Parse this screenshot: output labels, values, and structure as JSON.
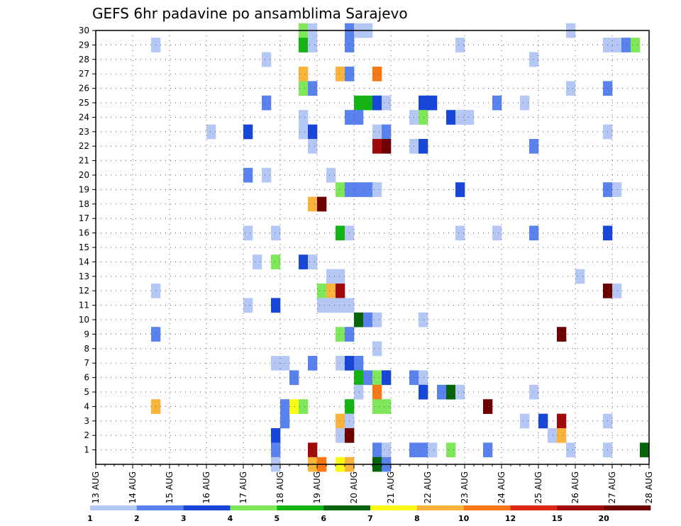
{
  "chart_data": {
    "type": "heatmap",
    "title": "GEFS 6hr padavine po ansamblima Sarajevo",
    "x_tick_labels": [
      "13 AUG",
      "14 AUG",
      "15 AUG",
      "16 AUG",
      "17 AUG",
      "18 AUG",
      "19 AUG",
      "20 AUG",
      "21 AUG",
      "22 AUG",
      "23 AUG",
      "24 AUG",
      "25 AUG",
      "26 AUG",
      "27 AUG",
      "28 AUG"
    ],
    "y_tick_labels": [
      "1",
      "2",
      "3",
      "4",
      "5",
      "6",
      "7",
      "8",
      "9",
      "10",
      "11",
      "12",
      "13",
      "14",
      "15",
      "16",
      "17",
      "18",
      "19",
      "20",
      "21",
      "22",
      "23",
      "24",
      "25",
      "26",
      "27",
      "28",
      "29",
      "30"
    ],
    "x_range": [
      "13 AUG 00Z",
      "28 AUG 00Z"
    ],
    "y_range": [
      0,
      30
    ],
    "time_step_hours": 6,
    "grid": "dotted",
    "legend": {
      "position": "bottom",
      "tick_labels": [
        "1",
        "2",
        "3",
        "4",
        "5",
        "6",
        "7",
        "8",
        "10",
        "12",
        "15",
        "20"
      ],
      "colors": [
        "#b4c7f5",
        "#5a82ee",
        "#1846d8",
        "#7ee85a",
        "#14b414",
        "#06640a",
        "#fafa14",
        "#fab43c",
        "#fa7814",
        "#dc2814",
        "#a00a0a",
        "#6e0000"
      ]
    },
    "points": [
      [
        "14 AUG 12Z",
        29,
        1
      ],
      [
        "18 AUG 12Z",
        30,
        4
      ],
      [
        "18 AUG 18Z",
        30,
        1
      ],
      [
        "19 AUG 18Z",
        30,
        2
      ],
      [
        "20 AUG 00Z",
        30,
        1
      ],
      [
        "20 AUG 06Z",
        30,
        1
      ],
      [
        "25 AUG 18Z",
        30,
        1
      ],
      [
        "18 AUG 12Z",
        29,
        5
      ],
      [
        "18 AUG 18Z",
        29,
        1
      ],
      [
        "19 AUG 18Z",
        29,
        2
      ],
      [
        "22 AUG 18Z",
        29,
        1
      ],
      [
        "26 AUG 18Z",
        29,
        1
      ],
      [
        "27 AUG 00Z",
        29,
        1
      ],
      [
        "27 AUG 06Z",
        29,
        2
      ],
      [
        "27 AUG 12Z",
        29,
        4
      ],
      [
        "17 AUG 12Z",
        28,
        1
      ],
      [
        "24 AUG 18Z",
        28,
        1
      ],
      [
        "18 AUG 12Z",
        27,
        8
      ],
      [
        "19 AUG 12Z",
        27,
        8
      ],
      [
        "19 AUG 18Z",
        27,
        2
      ],
      [
        "20 AUG 12Z",
        27,
        10
      ],
      [
        "18 AUG 12Z",
        26,
        4
      ],
      [
        "18 AUG 18Z",
        26,
        2
      ],
      [
        "25 AUG 18Z",
        26,
        1
      ],
      [
        "26 AUG 18Z",
        26,
        2
      ],
      [
        "17 AUG 12Z",
        25,
        2
      ],
      [
        "20 AUG 00Z",
        25,
        5
      ],
      [
        "20 AUG 06Z",
        25,
        5
      ],
      [
        "20 AUG 12Z",
        25,
        3
      ],
      [
        "20 AUG 18Z",
        25,
        1
      ],
      [
        "21 AUG 18Z",
        25,
        3
      ],
      [
        "22 AUG 00Z",
        25,
        3
      ],
      [
        "23 AUG 18Z",
        25,
        2
      ],
      [
        "24 AUG 12Z",
        25,
        1
      ],
      [
        "18 AUG 12Z",
        24,
        1
      ],
      [
        "19 AUG 18Z",
        24,
        2
      ],
      [
        "20 AUG 00Z",
        24,
        2
      ],
      [
        "21 AUG 12Z",
        24,
        1
      ],
      [
        "21 AUG 18Z",
        24,
        4
      ],
      [
        "22 AUG 12Z",
        24,
        3
      ],
      [
        "22 AUG 18Z",
        24,
        1
      ],
      [
        "23 AUG 00Z",
        24,
        1
      ],
      [
        "16 AUG 00Z",
        23,
        1
      ],
      [
        "17 AUG 00Z",
        23,
        3
      ],
      [
        "18 AUG 12Z",
        23,
        1
      ],
      [
        "18 AUG 18Z",
        23,
        3
      ],
      [
        "20 AUG 12Z",
        23,
        1
      ],
      [
        "20 AUG 18Z",
        23,
        2
      ],
      [
        "26 AUG 18Z",
        23,
        1
      ],
      [
        "18 AUG 18Z",
        22,
        1
      ],
      [
        "20 AUG 12Z",
        22,
        15
      ],
      [
        "20 AUG 18Z",
        22,
        20
      ],
      [
        "21 AUG 12Z",
        22,
        1
      ],
      [
        "21 AUG 18Z",
        22,
        3
      ],
      [
        "24 AUG 18Z",
        22,
        2
      ],
      [
        "17 AUG 00Z",
        20,
        2
      ],
      [
        "17 AUG 12Z",
        20,
        1
      ],
      [
        "19 AUG 06Z",
        20,
        1
      ],
      [
        "19 AUG 12Z",
        19,
        4
      ],
      [
        "19 AUG 18Z",
        19,
        2
      ],
      [
        "20 AUG 00Z",
        19,
        2
      ],
      [
        "20 AUG 06Z",
        19,
        2
      ],
      [
        "20 AUG 12Z",
        19,
        1
      ],
      [
        "22 AUG 18Z",
        19,
        3
      ],
      [
        "26 AUG 18Z",
        19,
        2
      ],
      [
        "27 AUG 00Z",
        19,
        1
      ],
      [
        "18 AUG 18Z",
        18,
        8
      ],
      [
        "19 AUG 00Z",
        18,
        20
      ],
      [
        "17 AUG 00Z",
        16,
        1
      ],
      [
        "17 AUG 18Z",
        16,
        1
      ],
      [
        "19 AUG 12Z",
        16,
        5
      ],
      [
        "19 AUG 18Z",
        16,
        1
      ],
      [
        "22 AUG 18Z",
        16,
        1
      ],
      [
        "23 AUG 18Z",
        16,
        1
      ],
      [
        "24 AUG 18Z",
        16,
        2
      ],
      [
        "26 AUG 18Z",
        16,
        3
      ],
      [
        "17 AUG 06Z",
        14,
        1
      ],
      [
        "17 AUG 18Z",
        14,
        4
      ],
      [
        "18 AUG 12Z",
        14,
        3
      ],
      [
        "18 AUG 18Z",
        14,
        1
      ],
      [
        "19 AUG 06Z",
        13,
        1
      ],
      [
        "19 AUG 12Z",
        13,
        1
      ],
      [
        "26 AUG 00Z",
        13,
        1
      ],
      [
        "14 AUG 12Z",
        12,
        1
      ],
      [
        "19 AUG 00Z",
        12,
        4
      ],
      [
        "19 AUG 06Z",
        12,
        8
      ],
      [
        "19 AUG 12Z",
        12,
        15
      ],
      [
        "26 AUG 18Z",
        12,
        20
      ],
      [
        "27 AUG 00Z",
        12,
        1
      ],
      [
        "17 AUG 00Z",
        11,
        1
      ],
      [
        "17 AUG 18Z",
        11,
        3
      ],
      [
        "19 AUG 00Z",
        11,
        1
      ],
      [
        "19 AUG 06Z",
        11,
        1
      ],
      [
        "19 AUG 12Z",
        11,
        1
      ],
      [
        "19 AUG 18Z",
        11,
        1
      ],
      [
        "20 AUG 00Z",
        10,
        6
      ],
      [
        "20 AUG 06Z",
        10,
        2
      ],
      [
        "20 AUG 12Z",
        10,
        1
      ],
      [
        "21 AUG 18Z",
        10,
        1
      ],
      [
        "14 AUG 12Z",
        9,
        2
      ],
      [
        "19 AUG 12Z",
        9,
        4
      ],
      [
        "19 AUG 18Z",
        9,
        2
      ],
      [
        "25 AUG 12Z",
        9,
        20
      ],
      [
        "20 AUG 12Z",
        8,
        1
      ],
      [
        "17 AUG 18Z",
        7,
        1
      ],
      [
        "18 AUG 00Z",
        7,
        1
      ],
      [
        "18 AUG 18Z",
        7,
        2
      ],
      [
        "19 AUG 12Z",
        7,
        1
      ],
      [
        "19 AUG 18Z",
        7,
        3
      ],
      [
        "20 AUG 00Z",
        7,
        2
      ],
      [
        "18 AUG 06Z",
        6,
        2
      ],
      [
        "20 AUG 00Z",
        6,
        5
      ],
      [
        "20 AUG 06Z",
        6,
        2
      ],
      [
        "20 AUG 12Z",
        6,
        4
      ],
      [
        "20 AUG 18Z",
        6,
        3
      ],
      [
        "21 AUG 12Z",
        6,
        2
      ],
      [
        "21 AUG 18Z",
        6,
        1
      ],
      [
        "20 AUG 00Z",
        5,
        1
      ],
      [
        "20 AUG 12Z",
        5,
        10
      ],
      [
        "21 AUG 18Z",
        5,
        3
      ],
      [
        "22 AUG 06Z",
        5,
        2
      ],
      [
        "22 AUG 12Z",
        5,
        6
      ],
      [
        "22 AUG 18Z",
        5,
        1
      ],
      [
        "24 AUG 18Z",
        5,
        1
      ],
      [
        "14 AUG 12Z",
        4,
        8
      ],
      [
        "18 AUG 00Z",
        4,
        2
      ],
      [
        "18 AUG 06Z",
        4,
        7
      ],
      [
        "18 AUG 12Z",
        4,
        4
      ],
      [
        "19 AUG 18Z",
        4,
        5
      ],
      [
        "20 AUG 12Z",
        4,
        4
      ],
      [
        "20 AUG 18Z",
        4,
        4
      ],
      [
        "23 AUG 12Z",
        4,
        20
      ],
      [
        "18 AUG 00Z",
        3,
        2
      ],
      [
        "19 AUG 12Z",
        3,
        8
      ],
      [
        "19 AUG 18Z",
        3,
        1
      ],
      [
        "24 AUG 12Z",
        3,
        1
      ],
      [
        "25 AUG 00Z",
        3,
        3
      ],
      [
        "25 AUG 12Z",
        3,
        15
      ],
      [
        "26 AUG 18Z",
        3,
        1
      ],
      [
        "17 AUG 18Z",
        2,
        3
      ],
      [
        "19 AUG 12Z",
        2,
        1
      ],
      [
        "19 AUG 18Z",
        2,
        20
      ],
      [
        "25 AUG 06Z",
        2,
        1
      ],
      [
        "25 AUG 12Z",
        2,
        8
      ],
      [
        "17 AUG 18Z",
        1,
        2
      ],
      [
        "18 AUG 18Z",
        1,
        15
      ],
      [
        "20 AUG 12Z",
        1,
        2
      ],
      [
        "20 AUG 18Z",
        1,
        1
      ],
      [
        "21 AUG 12Z",
        1,
        2
      ],
      [
        "21 AUG 18Z",
        1,
        2
      ],
      [
        "22 AUG 00Z",
        1,
        1
      ],
      [
        "22 AUG 12Z",
        1,
        4
      ],
      [
        "23 AUG 12Z",
        1,
        2
      ],
      [
        "25 AUG 18Z",
        1,
        1
      ],
      [
        "26 AUG 18Z",
        1,
        1
      ],
      [
        "27 AUG 18Z",
        1,
        6
      ],
      [
        "17 AUG 18Z",
        0,
        1
      ],
      [
        "18 AUG 18Z",
        0,
        8
      ],
      [
        "19 AUG 00Z",
        0,
        10
      ],
      [
        "19 AUG 12Z",
        0,
        7
      ],
      [
        "19 AUG 18Z",
        0,
        8
      ],
      [
        "20 AUG 12Z",
        0,
        6
      ],
      [
        "20 AUG 18Z",
        0,
        2
      ]
    ]
  }
}
